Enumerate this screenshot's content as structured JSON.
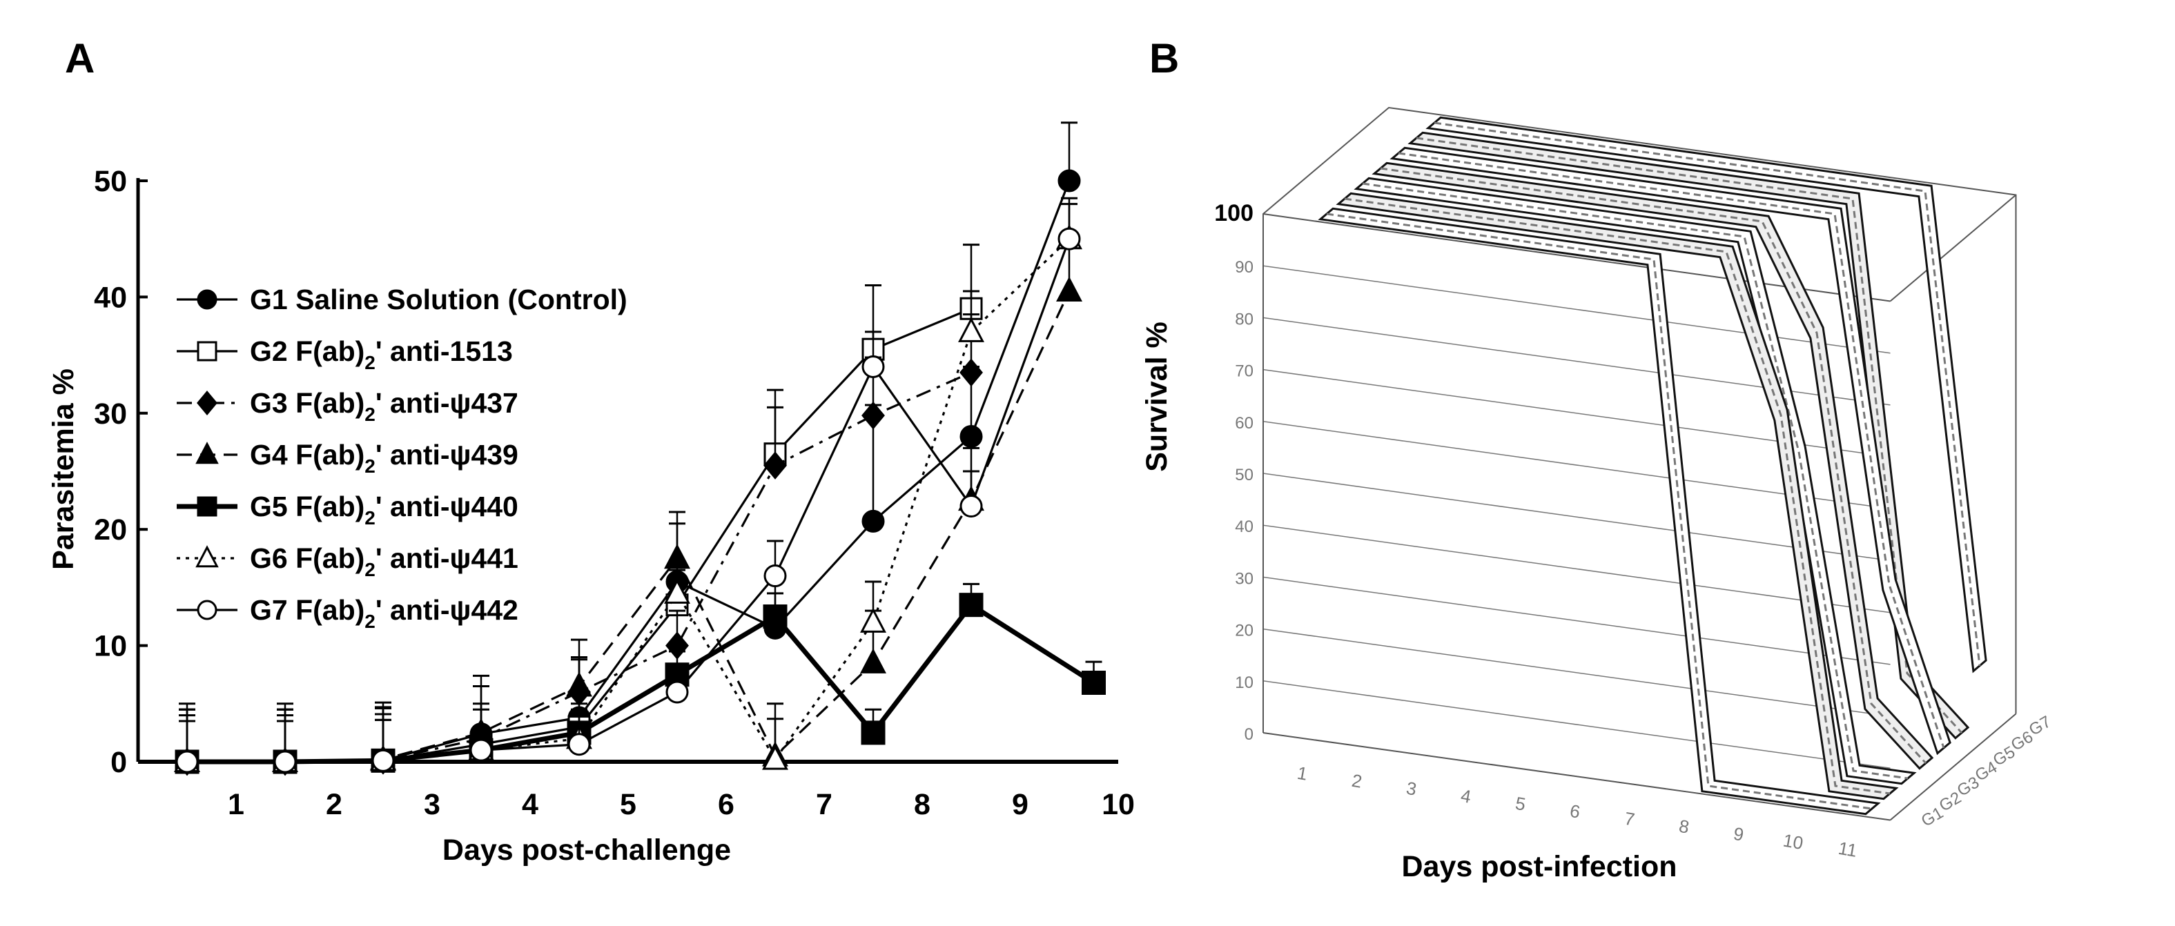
{
  "colors": {
    "ink": "#000000",
    "panel_b_grey": "#777777",
    "background": "#ffffff"
  },
  "chart_data": [
    {
      "panel": "A",
      "type": "line",
      "xlabel": "Days post-challenge",
      "ylabel": "Parasitemia %",
      "x_ticks": [
        "1",
        "2",
        "3",
        "4",
        "5",
        "6",
        "7",
        "8",
        "9",
        "10"
      ],
      "y_ticks": [
        "0",
        "10",
        "20",
        "30",
        "40",
        "50"
      ],
      "xlim": [
        0,
        10
      ],
      "ylim": [
        0,
        50
      ],
      "series": [
        {
          "name": "G1 Saline Solution (Control)",
          "marker": "circle-filled",
          "dash": "solid",
          "thick": false,
          "x": [
            0.5,
            1.5,
            2.5,
            3.5,
            4.5,
            5.5,
            6.5,
            7.5,
            8.5,
            9.5
          ],
          "y": [
            0,
            0,
            0.1,
            2.4,
            3.8,
            15.5,
            11.5,
            20.7,
            28,
            50
          ],
          "err": [
            5,
            5,
            5,
            5,
            5,
            5,
            5,
            10,
            6,
            5
          ]
        },
        {
          "name": "G2 F(ab)2' anti-1513",
          "marker": "square-open",
          "dash": "solid",
          "thick": false,
          "x": [
            0.5,
            1.5,
            2.5,
            3.5,
            4.5,
            5.5,
            6.5,
            7.5,
            8.5
          ],
          "y": [
            0,
            0,
            0.1,
            1.5,
            3,
            13.5,
            26.5,
            35.5,
            39
          ],
          "err": [
            4.5,
            4.5,
            4.5,
            3,
            2,
            2,
            5.5,
            5.5,
            5.5
          ]
        },
        {
          "name": "G3 F(ab)2' anti-ψ437",
          "marker": "diamond-filled",
          "dash": "dashdot",
          "thick": false,
          "x": [
            0.5,
            1.5,
            2.5,
            3.5,
            4.5,
            5.5,
            6.5,
            7.5,
            8.5
          ],
          "y": [
            0,
            0,
            0.1,
            2,
            6,
            10,
            25.5,
            29.8,
            33.5
          ],
          "err": [
            4.5,
            4.5,
            4.5,
            3,
            3,
            3,
            5,
            5,
            5
          ]
        },
        {
          "name": "G4 F(ab)2' anti-ψ439",
          "marker": "triangle-filled",
          "dash": "dashed",
          "thick": false,
          "x": [
            0.5,
            1.5,
            2.5,
            3.5,
            4.5,
            5.5,
            6.5,
            7.5,
            8.5,
            9.5
          ],
          "y": [
            0,
            0,
            0.2,
            2.5,
            6.5,
            17.5,
            0.5,
            8.5,
            22.5,
            40.5
          ],
          "err": [
            4.5,
            4.5,
            4.5,
            4,
            4,
            4,
            4.5,
            4.5,
            4.5,
            4.5
          ]
        },
        {
          "name": "G5 F(ab)2' anti-ψ440",
          "marker": "square-filled",
          "dash": "solid",
          "thick": true,
          "x": [
            0.5,
            1.5,
            2.5,
            3.5,
            4.5,
            5.5,
            6.5,
            7.5,
            8.5,
            9.75
          ],
          "y": [
            0,
            0,
            0.1,
            1,
            2.5,
            7.5,
            12.5,
            2.5,
            13.5,
            6.8
          ],
          "err": [
            4,
            4,
            4,
            2,
            2,
            2,
            2,
            2,
            1.8,
            1.8
          ]
        },
        {
          "name": "G6 F(ab)2' anti-ψ441",
          "marker": "triangle-open",
          "dash": "dotted",
          "thick": false,
          "x": [
            0.5,
            1.5,
            2.5,
            3.5,
            4.5,
            5.5,
            6.5,
            7.5,
            8.5,
            9.5
          ],
          "y": [
            0,
            0,
            0.1,
            1,
            2,
            14.5,
            0.2,
            12,
            37,
            45
          ],
          "err": [
            3.5,
            3.5,
            3.5,
            2,
            2,
            2,
            3.5,
            3.5,
            3.5,
            3.5
          ]
        },
        {
          "name": "G7 F(ab)2' anti-ψ442",
          "marker": "circle-open",
          "dash": "solid",
          "thick": false,
          "x": [
            0.5,
            1.5,
            2.5,
            3.5,
            4.5,
            5.5,
            6.5,
            7.5,
            8.5,
            9.5
          ],
          "y": [
            0,
            0,
            0.1,
            1,
            1.5,
            6,
            16,
            34,
            22,
            45
          ],
          "err": [
            3.5,
            3.5,
            3.5,
            1.5,
            1.5,
            1.5,
            3,
            3,
            3,
            3
          ]
        }
      ]
    },
    {
      "panel": "B",
      "type": "3d-line",
      "xlabel": "Days post-infection",
      "ylabel": "Survival %",
      "x_ticks": [
        "1",
        "2",
        "3",
        "4",
        "5",
        "6",
        "7",
        "8",
        "9",
        "10",
        "11"
      ],
      "y_ticks": [
        "0",
        "10",
        "20",
        "30",
        "40",
        "50",
        "60",
        "70",
        "80",
        "90",
        "100"
      ],
      "depth_ticks": [
        "G1",
        "G2",
        "G3",
        "G4",
        "G5",
        "G6",
        "G7"
      ],
      "series": [
        {
          "name": "G1",
          "days": [
            1,
            2,
            3,
            4,
            5,
            6,
            7,
            8,
            9,
            10,
            11
          ],
          "survival": [
            100,
            100,
            100,
            100,
            100,
            100,
            100,
            0,
            0,
            0,
            0
          ]
        },
        {
          "name": "G2",
          "days": [
            1,
            2,
            3,
            4,
            5,
            6,
            7,
            8,
            9,
            10,
            11
          ],
          "survival": [
            100,
            100,
            100,
            100,
            100,
            100,
            100,
            100,
            70,
            0,
            0
          ]
        },
        {
          "name": "G3",
          "days": [
            1,
            2,
            3,
            4,
            5,
            6,
            7,
            8,
            9,
            10,
            11
          ],
          "survival": [
            100,
            100,
            100,
            100,
            100,
            100,
            100,
            100,
            60,
            0,
            0
          ]
        },
        {
          "name": "G4",
          "days": [
            1,
            2,
            3,
            4,
            5,
            6,
            7,
            8,
            9,
            10,
            11
          ],
          "survival": [
            100,
            100,
            100,
            100,
            100,
            100,
            100,
            100,
            80,
            10,
            0
          ]
        },
        {
          "name": "G5",
          "days": [
            1,
            2,
            3,
            4,
            5,
            6,
            7,
            8,
            9,
            10,
            11
          ],
          "survival": [
            100,
            100,
            100,
            100,
            100,
            100,
            100,
            100,
            100,
            30,
            0
          ]
        },
        {
          "name": "G6",
          "days": [
            1,
            2,
            3,
            4,
            5,
            6,
            7,
            8,
            9,
            10,
            11
          ],
          "survival": [
            100,
            100,
            100,
            100,
            100,
            100,
            100,
            100,
            100,
            10,
            0
          ]
        },
        {
          "name": "G7",
          "days": [
            1,
            2,
            3,
            4,
            5,
            6,
            7,
            8,
            9,
            10,
            11
          ],
          "survival": [
            100,
            100,
            100,
            100,
            100,
            100,
            100,
            100,
            100,
            100,
            10
          ]
        }
      ]
    }
  ],
  "panels": {
    "a_label": "A",
    "b_label": "B"
  },
  "legend": {
    "entries": [
      {
        "prefix": "G1 Saline Solution (Control)",
        "suffix": ""
      },
      {
        "prefix": "G2 F(ab)",
        "suffix": "' anti-1513"
      },
      {
        "prefix": "G3 F(ab)",
        "suffix": "' anti-ψ437"
      },
      {
        "prefix": "G4 F(ab)",
        "suffix": "' anti-ψ439"
      },
      {
        "prefix": "G5 F(ab)",
        "suffix": "' anti-ψ440"
      },
      {
        "prefix": "G6 F(ab)",
        "suffix": "' anti-ψ441"
      },
      {
        "prefix": "G7 F(ab)",
        "suffix": "' anti-ψ442"
      }
    ],
    "subscript": "2"
  }
}
